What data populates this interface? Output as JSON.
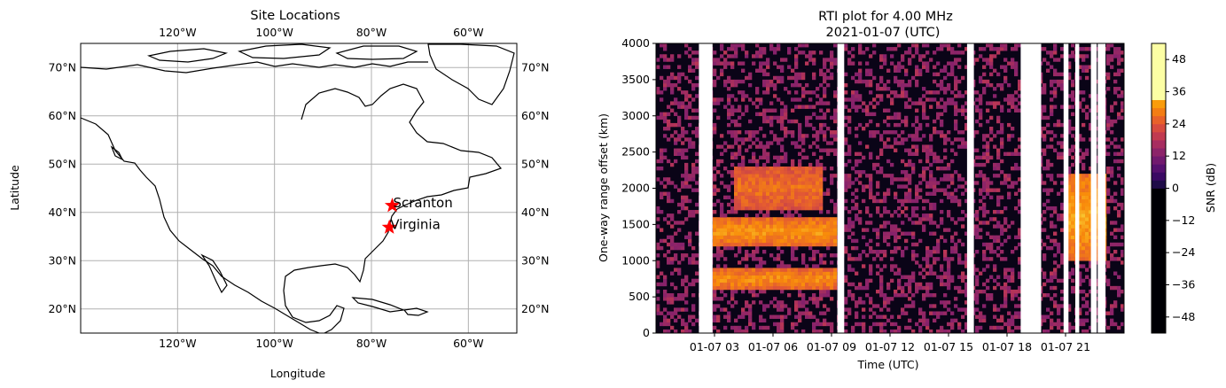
{
  "chart_data": [
    {
      "type": "map",
      "title": "Site Locations",
      "xlabel": "Longitude",
      "ylabel": "Latitude",
      "xlim": [
        -140,
        -50
      ],
      "ylim": [
        15,
        75
      ],
      "x_ticks": [
        "120°W",
        "100°W",
        "80°W",
        "60°W"
      ],
      "y_ticks": [
        "20°N",
        "30°N",
        "40°N",
        "50°N",
        "60°N",
        "70°N"
      ],
      "grid": true,
      "sites": [
        {
          "name": "Scranton",
          "lon": -75.7,
          "lat": 41.4
        },
        {
          "name": "Virginia",
          "lon": -76.3,
          "lat": 36.9
        }
      ],
      "marker_color": "#ff0000"
    },
    {
      "type": "heatmap",
      "title": "RTI plot for  4.00 MHz",
      "subtitle": "2021-01-07 (UTC)",
      "xlabel": "Time (UTC)",
      "ylabel": "One-way range offset (km)",
      "x_ticks": [
        "01-07 03",
        "01-07 06",
        "01-07 09",
        "01-07 12",
        "01-07 15",
        "01-07 18",
        "01-07 21"
      ],
      "y_ticks": [
        "0",
        "500",
        "1000",
        "1500",
        "2000",
        "2500",
        "3000",
        "3500",
        "4000"
      ],
      "xlim_hours": [
        0,
        24
      ],
      "ylim": [
        0,
        4000
      ],
      "colorbar": {
        "label": "SNR (dB)",
        "ticks": [
          "48",
          "36",
          "24",
          "12",
          "0",
          "-12",
          "-24",
          "-36",
          "-48"
        ],
        "range": [
          -54,
          54
        ],
        "colormap": "inferno"
      },
      "data_gaps_hours": [
        [
          2.2,
          2.9
        ],
        [
          9.3,
          9.65
        ],
        [
          15.95,
          16.3
        ],
        [
          18.7,
          19.75
        ],
        [
          20.9,
          21.15
        ],
        [
          21.5,
          21.7
        ],
        [
          22.3,
          22.6
        ],
        [
          22.65,
          23.05
        ]
      ],
      "echo_bands": [
        {
          "start_h": 3.0,
          "end_h": 9.3,
          "range_km": [
            1200,
            1600
          ],
          "snr_db": 30
        },
        {
          "start_h": 3.0,
          "end_h": 9.3,
          "range_km": [
            600,
            900
          ],
          "snr_db": 28
        },
        {
          "start_h": 4.0,
          "end_h": 8.5,
          "range_km": [
            1700,
            2300
          ],
          "snr_db": 20
        },
        {
          "start_h": 21.0,
          "end_h": 23.0,
          "range_km": [
            1000,
            2200
          ],
          "snr_db": 34
        }
      ]
    }
  ]
}
